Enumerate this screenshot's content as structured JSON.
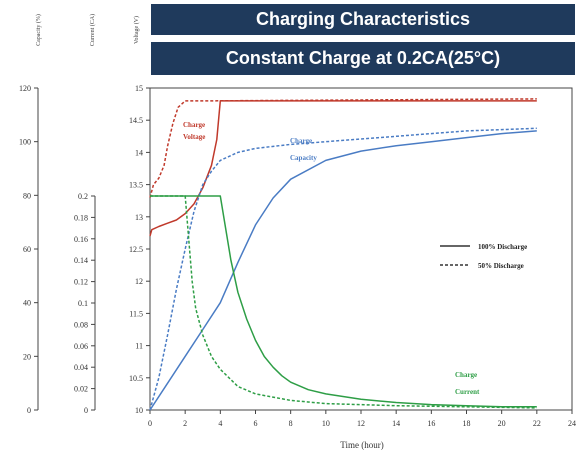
{
  "header": {
    "title": "Charging Characteristics",
    "subtitle": "Constant Charge at 0.2CA(25°C)"
  },
  "chart_data": {
    "type": "line",
    "xlabel": "Time (hour)",
    "x_ticks": [
      "0",
      "2",
      "4",
      "6",
      "8",
      "10",
      "12",
      "14",
      "16",
      "18",
      "20",
      "22",
      "24"
    ],
    "xlim": [
      0,
      24
    ],
    "grid": false,
    "legend_position": "right",
    "axes": [
      {
        "id": "capacity",
        "label": "Capacity (%)",
        "ticks": [
          "0",
          "20",
          "40",
          "60",
          "80",
          "100",
          "120"
        ],
        "ylim": [
          0,
          120
        ]
      },
      {
        "id": "current",
        "label": "Current (CA)",
        "ticks": [
          "0",
          "0.02",
          "0.04",
          "0.06",
          "0.08",
          "0.1",
          "0.12",
          "0.14",
          "0.16",
          "0.18",
          "0.2"
        ],
        "ylim": [
          0,
          0.2
        ]
      },
      {
        "id": "voltage",
        "label": "Voltage (V)",
        "ticks": [
          "10",
          "10.5",
          "11",
          "11.5",
          "12",
          "12.5",
          "13",
          "13.5",
          "14",
          "14.5",
          "15"
        ],
        "ylim": [
          10,
          15
        ]
      }
    ],
    "legend": [
      {
        "label": "100% Discharge",
        "style": "solid"
      },
      {
        "label": "50% Discharge",
        "style": "dashed"
      }
    ],
    "annotations": [
      {
        "text": "Charge",
        "color": "#c0392b"
      },
      {
        "text": "Voltage",
        "color": "#c0392b"
      },
      {
        "text": "Charge",
        "color": "#4a7cc4"
      },
      {
        "text": "Capacity",
        "color": "#4a7cc4"
      },
      {
        "text": "Charge",
        "color": "#2e9e46"
      },
      {
        "text": "Current",
        "color": "#2e9e46"
      }
    ],
    "series": [
      {
        "quantity": "voltage",
        "discharge": "100%",
        "axis": "voltage",
        "color": "#c0392b",
        "style": "solid",
        "x": [
          0,
          0.1,
          0.5,
          1,
          1.5,
          2,
          2.5,
          3,
          3.5,
          3.8,
          4,
          5,
          22
        ],
        "y": [
          12.7,
          12.8,
          12.85,
          12.9,
          12.95,
          13.05,
          13.2,
          13.45,
          13.8,
          14.2,
          14.8,
          14.8,
          14.8
        ]
      },
      {
        "quantity": "voltage",
        "discharge": "50%",
        "axis": "voltage",
        "color": "#c0392b",
        "style": "dashed",
        "x": [
          0,
          0.2,
          0.5,
          0.8,
          1,
          1.3,
          1.6,
          1.8,
          2,
          3,
          22
        ],
        "y": [
          13.3,
          13.5,
          13.6,
          13.8,
          14.1,
          14.45,
          14.7,
          14.75,
          14.8,
          14.8,
          14.83
        ]
      },
      {
        "quantity": "capacity",
        "discharge": "100%",
        "axis": "capacity",
        "color": "#4a7cc4",
        "style": "solid",
        "x": [
          0,
          1,
          2,
          3,
          4,
          5,
          6,
          7,
          8,
          10,
          12,
          14,
          16,
          18,
          20,
          22
        ],
        "y": [
          0,
          10,
          20,
          30,
          40,
          55,
          69,
          79,
          86,
          93,
          96.5,
          98.5,
          100,
          101.5,
          103,
          104
        ]
      },
      {
        "quantity": "capacity",
        "discharge": "50%",
        "axis": "capacity",
        "color": "#4a7cc4",
        "style": "dashed",
        "x": [
          0,
          0.5,
          1,
          1.5,
          2,
          2.5,
          3,
          3.5,
          4,
          5,
          6,
          8,
          10,
          12,
          14,
          16,
          18,
          20,
          22
        ],
        "y": [
          0,
          12,
          28,
          45,
          60,
          74,
          84,
          89,
          93,
          96,
          97.5,
          99,
          100,
          101,
          102,
          103,
          104,
          104.5,
          105
        ]
      },
      {
        "quantity": "current",
        "discharge": "100%",
        "axis": "current",
        "color": "#2e9e46",
        "style": "solid",
        "x": [
          0,
          4,
          4.3,
          4.6,
          5,
          5.5,
          6,
          6.5,
          7,
          7.5,
          8,
          9,
          10,
          12,
          14,
          16,
          18,
          20,
          22
        ],
        "y": [
          0.2,
          0.2,
          0.17,
          0.14,
          0.11,
          0.085,
          0.065,
          0.05,
          0.04,
          0.032,
          0.026,
          0.019,
          0.015,
          0.01,
          0.007,
          0.005,
          0.004,
          0.003,
          0.003
        ]
      },
      {
        "quantity": "current",
        "discharge": "50%",
        "axis": "current",
        "color": "#2e9e46",
        "style": "dashed",
        "x": [
          0,
          2,
          2.2,
          2.4,
          2.6,
          3,
          3.5,
          4,
          5,
          6,
          8,
          10,
          14,
          18,
          22
        ],
        "y": [
          0.2,
          0.2,
          0.16,
          0.12,
          0.095,
          0.07,
          0.05,
          0.038,
          0.022,
          0.015,
          0.009,
          0.006,
          0.004,
          0.003,
          0.002
        ]
      }
    ]
  }
}
